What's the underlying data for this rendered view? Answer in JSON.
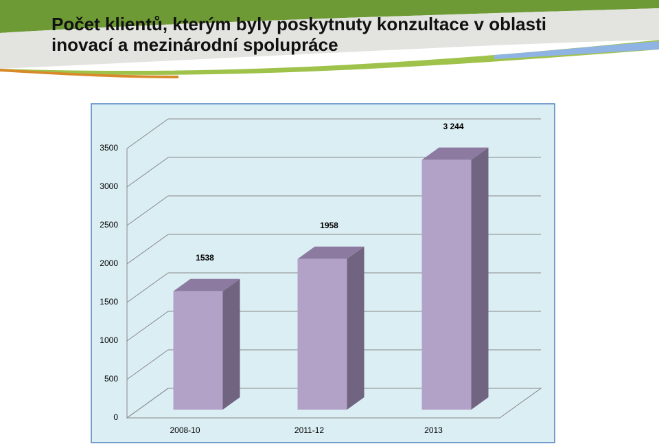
{
  "chart_data": {
    "type": "bar3d",
    "title": "Počet klientů, kterým byly poskytnuty konzultace v oblasti inovací a mezinárodní spolupráce",
    "categories": [
      "2008-10",
      "2011-12",
      "2013"
    ],
    "values": [
      1538,
      1958,
      3244
    ],
    "value_labels": [
      "1538",
      "1958",
      "3 244"
    ],
    "color": "#b3a2c7",
    "ylim": [
      0,
      3500
    ],
    "yticks": [
      0,
      500,
      1000,
      1500,
      2000,
      2500,
      3000,
      3500
    ],
    "grid": true
  }
}
